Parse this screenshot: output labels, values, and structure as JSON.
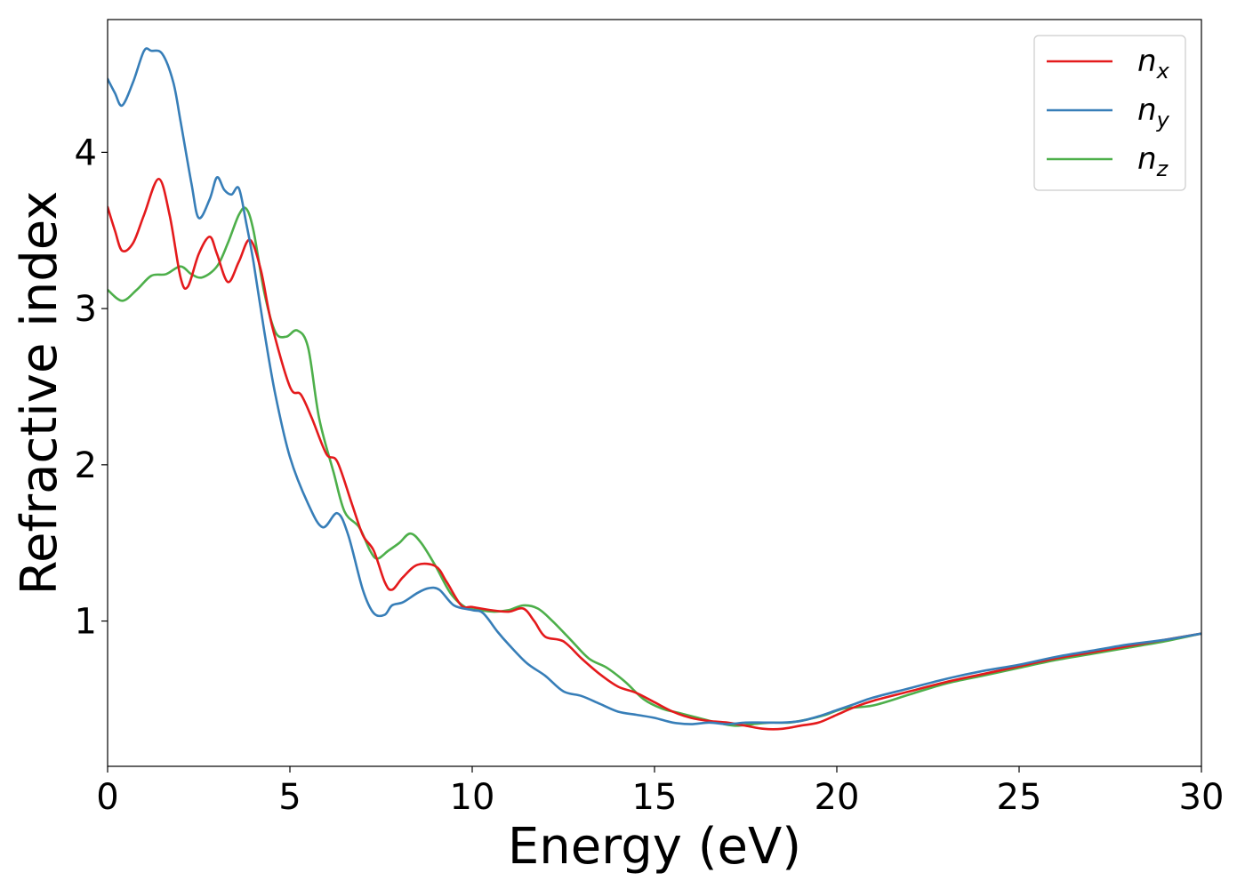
{
  "chart_data": {
    "type": "line",
    "xlabel": "Energy (eV)",
    "ylabel": "Refractive index",
    "xlim": [
      0,
      30
    ],
    "ylim": [
      0.07,
      4.85
    ],
    "xticks": [
      0,
      5,
      10,
      15,
      20,
      25,
      30
    ],
    "yticks": [
      1,
      2,
      3,
      4
    ],
    "grid": false,
    "legend_position": "top-right",
    "series": [
      {
        "name": "n",
        "subscript": "x",
        "color": "#e41a1c",
        "x": [
          0,
          0.2,
          0.4,
          0.7,
          1.0,
          1.4,
          1.7,
          2.0,
          2.2,
          2.5,
          2.8,
          3.0,
          3.3,
          3.6,
          3.9,
          4.2,
          4.5,
          5.0,
          5.3,
          5.6,
          6.0,
          6.3,
          6.7,
          7.0,
          7.3,
          7.6,
          7.8,
          8.1,
          8.5,
          9.0,
          9.3,
          9.7,
          10.0,
          10.5,
          11.0,
          11.4,
          11.7,
          12.0,
          12.5,
          13.0,
          13.5,
          14.0,
          14.5,
          15.0,
          15.5,
          16.0,
          16.5,
          17.0,
          17.5,
          18.0,
          18.5,
          19.0,
          19.5,
          20.0,
          20.5,
          21.0,
          22.0,
          23.0,
          24.0,
          25.0,
          26.0,
          27.0,
          28.0,
          29.0,
          30.0
        ],
        "y": [
          3.65,
          3.5,
          3.37,
          3.42,
          3.6,
          3.83,
          3.6,
          3.2,
          3.14,
          3.35,
          3.46,
          3.35,
          3.17,
          3.3,
          3.44,
          3.25,
          2.9,
          2.5,
          2.45,
          2.3,
          2.07,
          2.02,
          1.75,
          1.55,
          1.45,
          1.25,
          1.2,
          1.28,
          1.36,
          1.35,
          1.25,
          1.1,
          1.09,
          1.07,
          1.06,
          1.08,
          1.0,
          0.9,
          0.87,
          0.76,
          0.66,
          0.58,
          0.54,
          0.48,
          0.42,
          0.38,
          0.36,
          0.35,
          0.33,
          0.31,
          0.31,
          0.33,
          0.35,
          0.4,
          0.45,
          0.49,
          0.55,
          0.61,
          0.66,
          0.71,
          0.76,
          0.8,
          0.84,
          0.88,
          0.92
        ]
      },
      {
        "name": "n",
        "subscript": "y",
        "color": "#377eb8",
        "x": [
          0,
          0.2,
          0.4,
          0.7,
          1.0,
          1.2,
          1.5,
          1.8,
          2.0,
          2.3,
          2.5,
          2.8,
          3.0,
          3.2,
          3.4,
          3.6,
          3.8,
          4.0,
          4.3,
          4.6,
          5.0,
          5.5,
          5.9,
          6.3,
          6.6,
          7.0,
          7.3,
          7.6,
          7.8,
          8.1,
          8.5,
          8.8,
          9.1,
          9.5,
          10.0,
          10.3,
          10.7,
          11.0,
          11.5,
          12.0,
          12.5,
          13.0,
          13.5,
          14.0,
          14.5,
          15.0,
          15.5,
          16.0,
          16.5,
          17.0,
          17.5,
          18.0,
          18.5,
          19.0,
          19.5,
          20.0,
          20.5,
          21.0,
          22.0,
          23.0,
          24.0,
          25.0,
          26.0,
          27.0,
          28.0,
          29.0,
          30.0
        ],
        "y": [
          4.47,
          4.38,
          4.3,
          4.45,
          4.65,
          4.65,
          4.63,
          4.45,
          4.2,
          3.8,
          3.58,
          3.7,
          3.84,
          3.76,
          3.73,
          3.77,
          3.55,
          3.3,
          2.85,
          2.45,
          2.05,
          1.75,
          1.6,
          1.69,
          1.55,
          1.2,
          1.05,
          1.04,
          1.1,
          1.12,
          1.18,
          1.21,
          1.2,
          1.1,
          1.07,
          1.05,
          0.93,
          0.85,
          0.73,
          0.65,
          0.55,
          0.52,
          0.47,
          0.42,
          0.4,
          0.38,
          0.35,
          0.34,
          0.35,
          0.34,
          0.35,
          0.35,
          0.35,
          0.36,
          0.39,
          0.43,
          0.47,
          0.51,
          0.57,
          0.63,
          0.68,
          0.72,
          0.77,
          0.81,
          0.85,
          0.88,
          0.92
        ]
      },
      {
        "name": "n",
        "subscript": "z",
        "color": "#4daf4a",
        "x": [
          0,
          0.4,
          0.8,
          1.2,
          1.6,
          2.0,
          2.3,
          2.6,
          3.0,
          3.3,
          3.6,
          3.8,
          4.0,
          4.3,
          4.6,
          4.9,
          5.2,
          5.5,
          5.8,
          6.2,
          6.5,
          6.9,
          7.2,
          7.4,
          7.7,
          8.0,
          8.3,
          8.6,
          9.0,
          9.4,
          9.8,
          10.2,
          10.6,
          11.0,
          11.4,
          11.8,
          12.2,
          12.7,
          13.2,
          13.7,
          14.2,
          14.7,
          15.2,
          15.7,
          16.2,
          16.7,
          17.2,
          17.7,
          18.2,
          18.7,
          19.2,
          19.7,
          20.2,
          21.0,
          22.0,
          23.0,
          24.0,
          25.0,
          26.0,
          27.0,
          28.0,
          29.0,
          30.0
        ],
        "y": [
          3.12,
          3.05,
          3.12,
          3.21,
          3.22,
          3.27,
          3.22,
          3.2,
          3.27,
          3.42,
          3.6,
          3.64,
          3.5,
          3.1,
          2.85,
          2.82,
          2.86,
          2.75,
          2.3,
          1.95,
          1.7,
          1.6,
          1.45,
          1.4,
          1.45,
          1.5,
          1.56,
          1.5,
          1.35,
          1.18,
          1.09,
          1.07,
          1.06,
          1.07,
          1.1,
          1.08,
          1.0,
          0.88,
          0.76,
          0.7,
          0.61,
          0.5,
          0.44,
          0.41,
          0.38,
          0.35,
          0.33,
          0.34,
          0.35,
          0.35,
          0.37,
          0.4,
          0.44,
          0.46,
          0.53,
          0.6,
          0.65,
          0.7,
          0.75,
          0.79,
          0.83,
          0.87,
          0.92
        ]
      }
    ]
  }
}
